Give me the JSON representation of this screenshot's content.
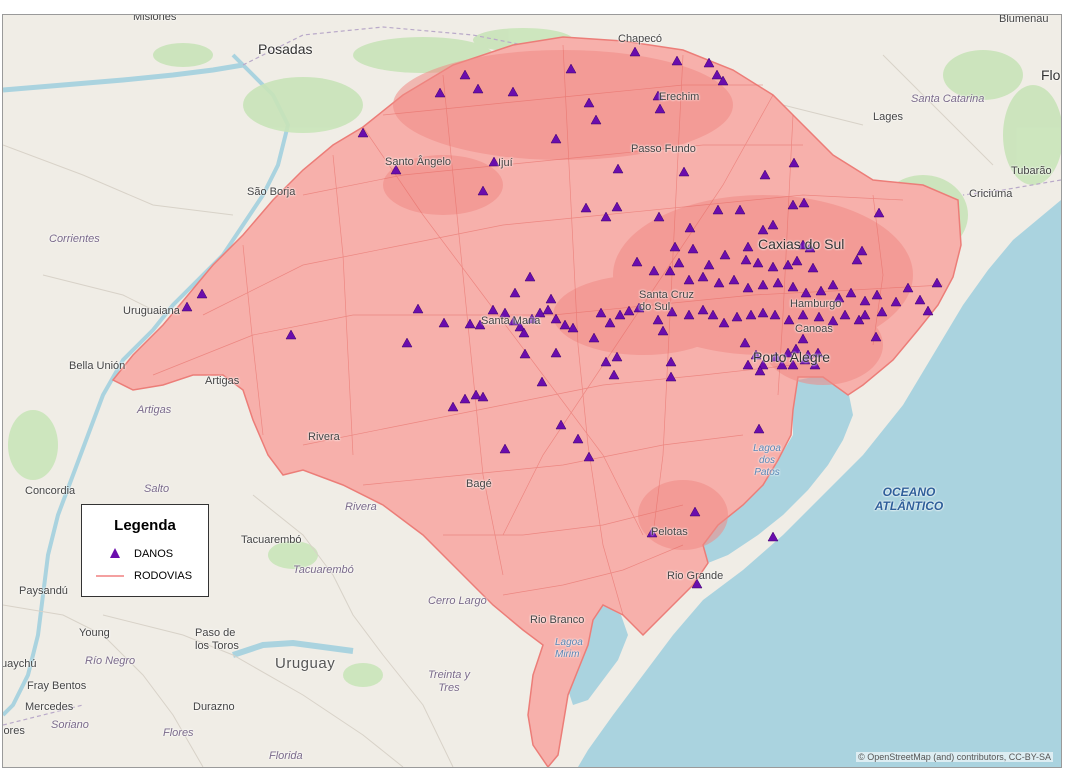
{
  "map": {
    "attribution": "© OpenStreetMap (and) contributors, CC-BY-SA",
    "colors": {
      "land": "#f0ede6",
      "water": "#aad3df",
      "roads": "#f08080",
      "roads_fill": "#f7b0ab",
      "markers": "#6a0dad",
      "forest": "#c9e4b9"
    }
  },
  "legend": {
    "title": "Legenda",
    "items": [
      {
        "label": "DANOS",
        "symbol": "purple-triangle"
      },
      {
        "label": "RODOVIAS",
        "symbol": "red-line"
      }
    ]
  },
  "labels": {
    "misiones": "Misiones",
    "posadas": "Posadas",
    "chapeco": "Chapecó",
    "blumenau": "Blumenau",
    "flo": "Flo",
    "santa_catarina": "Santa Catarina",
    "lages": "Lages",
    "erechim": "Erechim",
    "passo_fundo": "Passo Fundo",
    "santo_angelo": "Santo Ângelo",
    "ijui": "Ijuí",
    "sao_borja": "São Borja",
    "tubarao": "Tubarão",
    "criciuma": "Criciúma",
    "corrientes": "Corrientes",
    "caxias_do_sul": "Caxias do Sul",
    "uruguaiana": "Uruguaiana",
    "santa_maria": "Santa Maria",
    "santa_cruz_do_sul": "Santa Cruz do Sul",
    "hamburgo": "Hamburgo",
    "canoas": "Canoas",
    "porto_alegre": "Porto Alegre",
    "bella_union": "Bella Unión",
    "artigas_city": "Artigas",
    "artigas_dept": "Artigas",
    "rivera_city": "Rivera",
    "rivera_dept": "Rivera",
    "lagoa_dos_patos": "Lagoa dos Patos",
    "concordia": "Concordia",
    "salto": "Salto",
    "bage": "Bagé",
    "oceano_atlantico_1": "OCEANO",
    "oceano_atlantico_2": "ATLÂNTICO",
    "tacuarembo_city": "Tacuarembó",
    "tacuarembo_dept": "Tacuarembó",
    "pelotas": "Pelotas",
    "rio_grande": "Rio Grande",
    "paysandu": "Paysandú",
    "cerro_largo": "Cerro Largo",
    "rio_branco": "Rio Branco",
    "young": "Young",
    "paso_de_los_toros_1": "Paso de",
    "paso_de_los_toros_2": "los Toros",
    "lagoa_mirim": "Lagoa Mirim",
    "uayachu": "uaychú",
    "rio_negro": "Río Negro",
    "uruguay": "Uruguay",
    "treinta_y_tres_1": "Treinta y",
    "treinta_y_tres_2": "Tres",
    "fray_bentos": "Fray Bentos",
    "mercedes": "Mercedes",
    "durazno": "Durazno",
    "soriano": "Soriano",
    "lores": "lores",
    "flores": "Flores",
    "florida": "Florida"
  }
}
